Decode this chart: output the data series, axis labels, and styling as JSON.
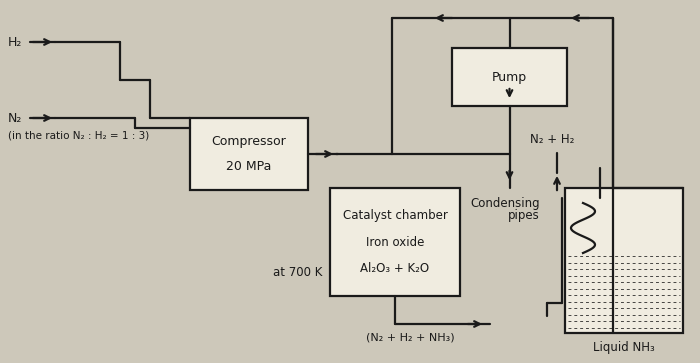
{
  "bg_color": "#cdc8ba",
  "line_color": "#1a1a1a",
  "box_color": "#e8e4d8",
  "h2_label": "H₂",
  "n2_label": "N₂",
  "ratio_label": "(in the ratio N₂ : H₂ = 1 : 3)",
  "compressor_label": [
    "Compressor",
    "20 MPa"
  ],
  "pump_label": "Pump",
  "catalyst_label": [
    "Catalyst chamber",
    "Iron oxide",
    "Al₂O₃ + K₂O"
  ],
  "temp_label": "at 700 K",
  "condensing_label": [
    "Condensing",
    "pipes"
  ],
  "n2h2_label": "N₂ + H₂",
  "liquid_label": "Liquid NH₃",
  "bottom_label": "(N₂ + H₂ + NH₃)"
}
